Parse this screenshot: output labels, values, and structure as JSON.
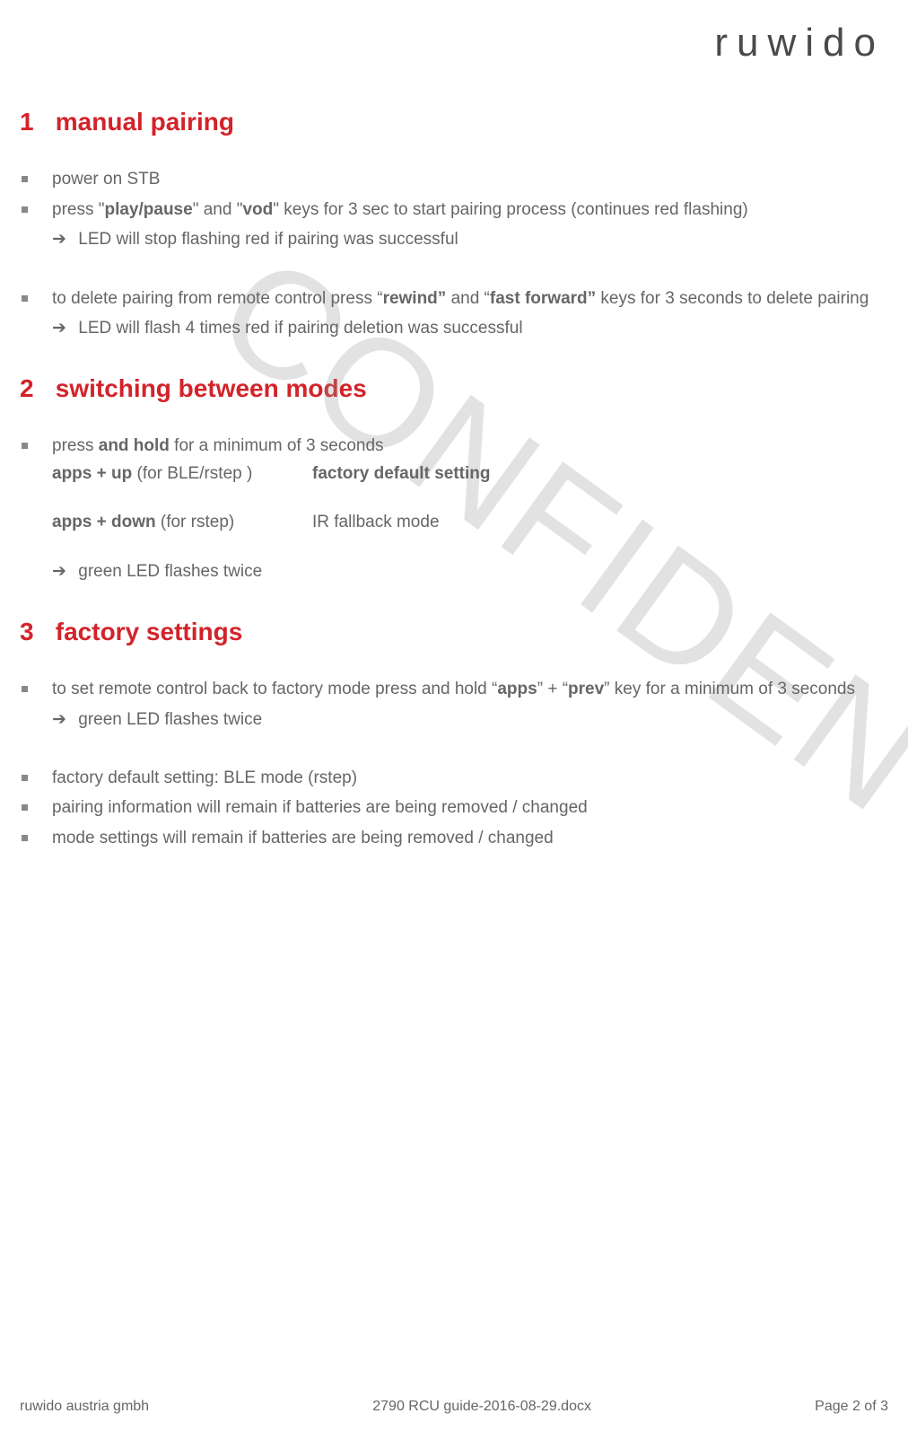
{
  "logo_text": "ruwido",
  "watermark": "CONFIDENTIAL",
  "sections": {
    "s1": {
      "num": "1",
      "title": "manual pairing",
      "b1": "power on STB",
      "b2_pre": "press \"",
      "b2_k1": "play/pause",
      "b2_mid": "\" and \"",
      "b2_k2": "vod",
      "b2_post": "\" keys for 3 sec to start pairing process (continues red flashing)",
      "b2_sub": "LED will stop flashing red if pairing was successful",
      "b3_pre": "to delete pairing from remote control press “",
      "b3_k1": "rewind”",
      "b3_mid": " and “",
      "b3_k2": "fast forward”",
      "b3_post": " keys for 3 seconds to delete pairing",
      "b3_sub": "LED will flash 4 times red if pairing deletion was successful"
    },
    "s2": {
      "num": "2",
      "title": "switching between modes",
      "b1_pre": "press ",
      "b1_bold": "and hold",
      "b1_post": " for a minimum of 3 seconds",
      "row1_c1": "apps + up",
      "row1_c1_post": " (for BLE/rstep )",
      "row1_c2": "factory default setting",
      "row2_c1": "apps + down",
      "row2_c1_post": " (for rstep)",
      "row2_c2": "IR fallback mode",
      "sub": "green LED flashes twice"
    },
    "s3": {
      "num": "3",
      "title": "factory settings",
      "b1_pre": "to set remote control back to factory mode press and hold “",
      "b1_k1": "apps",
      "b1_mid": "”  + “",
      "b1_k2": "prev",
      "b1_post": "” key for a minimum of 3 seconds",
      "b1_sub": "green LED flashes twice",
      "b2": "factory default setting: BLE mode (rstep)",
      "b3": "pairing information will remain if batteries are being removed / changed",
      "b4": "mode settings will remain if batteries are being removed / changed"
    }
  },
  "footer": {
    "left": "ruwido austria gmbh",
    "center": "2790 RCU guide-2016-08-29.docx",
    "right": "Page 2 of 3"
  },
  "arrow_glyph": "➔"
}
